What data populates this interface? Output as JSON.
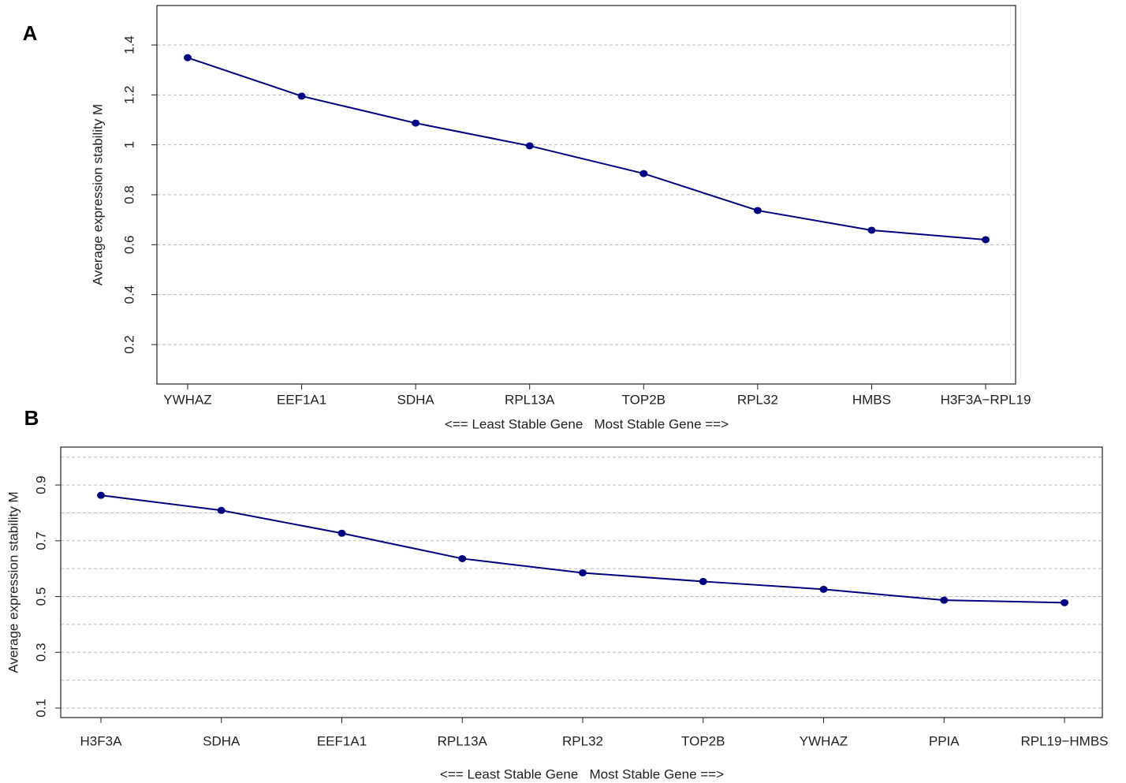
{
  "chart_data": [
    {
      "type": "line",
      "panel_label": "A",
      "y_label": "Average expression stability M",
      "x_label": "<== Least Stable Gene   Most Stable Gene ==>",
      "categories": [
        "YWHAZ",
        "EEF1A1",
        "SDHA",
        "RPL13A",
        "TOP2B",
        "RPL32",
        "HMBS",
        "H3F3A−RPL19"
      ],
      "series": [
        {
          "color": "#000080",
          "values": [
            1.349,
            1.195,
            1.087,
            0.996,
            0.885,
            0.737,
            0.658,
            0.62
          ]
        }
      ],
      "ylim": [
        0.042,
        1.558
      ],
      "yticks": [
        0.2,
        0.4,
        0.6,
        0.8,
        1,
        1.2,
        1.4
      ],
      "grid": true
    },
    {
      "type": "line",
      "panel_label": "B",
      "y_label": "Average expression stability M",
      "x_label": "<== Least Stable Gene   Most Stable Gene ==>",
      "categories": [
        "H3F3A",
        "SDHA",
        "EEF1A1",
        "RPL13A",
        "RPL32",
        "TOP2B",
        "YWHAZ",
        "PPIA",
        "RPL19−HMBS"
      ],
      "series": [
        {
          "color": "#000080",
          "values": [
            0.863,
            0.809,
            0.727,
            0.636,
            0.585,
            0.554,
            0.526,
            0.487,
            0.478
          ]
        }
      ],
      "ylim": [
        0.066,
        1.036
      ],
      "yticks": [
        0.1,
        0.3,
        0.5,
        0.7,
        0.9
      ],
      "minor_grid": [
        0.2,
        0.4,
        0.6,
        0.8,
        1.0
      ],
      "grid": true
    }
  ]
}
